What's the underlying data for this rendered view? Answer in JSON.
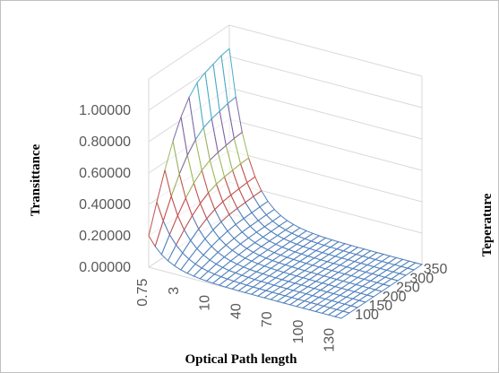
{
  "chart_data": {
    "type": "surface3d",
    "title": "",
    "xlabel": "Optical Path length",
    "ylabel": "Transittance",
    "zlabel": "Teperature",
    "x_tick_labels": [
      "0.75",
      "3",
      "10",
      "40",
      "70",
      "100",
      "130"
    ],
    "y_tick_labels": [
      "0.00000",
      "0.20000",
      "0.40000",
      "0.60000",
      "0.80000",
      "1.00000"
    ],
    "z_tick_labels": [
      "100",
      "150",
      "200",
      "250",
      "300",
      "350"
    ],
    "ylim": [
      0,
      1.2
    ],
    "grid": true,
    "legend": "none",
    "band_edges": [
      0,
      0.2,
      0.4,
      0.6,
      0.8,
      1.0
    ],
    "band_colors": [
      "#4f81bd",
      "#c0504d",
      "#9bbb59",
      "#8064a2",
      "#4bacc6"
    ],
    "x": [
      0.75,
      1.75,
      2.75,
      4,
      6,
      8,
      10,
      15,
      20,
      25,
      30,
      35,
      40,
      45,
      50,
      55,
      60,
      65,
      70,
      75,
      80,
      85,
      90,
      95,
      100,
      105,
      110,
      115,
      120,
      125,
      130
    ],
    "z": [
      100,
      125,
      150,
      175,
      200,
      225,
      250,
      275,
      300,
      325,
      350
    ],
    "surface": {
      "function": "transmittance",
      "peak_values_at_min_path": [
        0.2,
        0.38,
        0.55,
        0.7,
        0.82,
        0.91,
        0.97,
        1.0,
        1.02,
        1.04,
        1.05
      ],
      "values_at_max_path": [
        0,
        0,
        0,
        0,
        0,
        0,
        0,
        0,
        0,
        0,
        0
      ]
    }
  }
}
